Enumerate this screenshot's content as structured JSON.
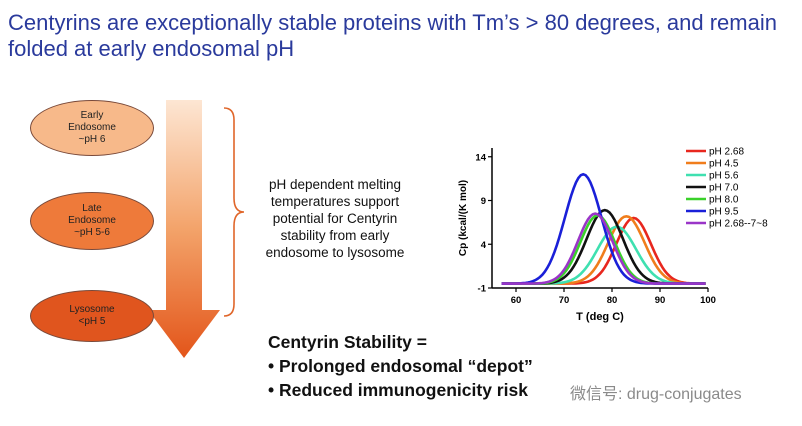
{
  "title": "Centyrins are exceptionally stable proteins with Tm’s > 80 degrees, and remain folded at early endosomal pH",
  "stages": [
    {
      "lines": [
        "Early",
        "Endosome",
        "~pH 6"
      ],
      "color": "#f7b98a"
    },
    {
      "lines": [
        "Late",
        "Endosome",
        "~pH 5-6"
      ],
      "color": "#ee7a3a"
    },
    {
      "lines": [
        "Lysosome",
        "<pH 5"
      ],
      "color": "#e0551e"
    }
  ],
  "description_lines": [
    "pH dependent melting",
    "temperatures support",
    "potential for Centyrin",
    "stability from early",
    "endosome to lysosome"
  ],
  "stability": {
    "heading": "Centyrin Stability =",
    "bullets": [
      "• Prolonged endosomal “depot”",
      "• Reduced immunogenicity risk"
    ]
  },
  "watermark": "微信号: drug-conjugates",
  "chart_data": {
    "type": "line",
    "xlabel": "T (deg C)",
    "ylabel": "Cp (kcal/(K mol)",
    "xlim": [
      55,
      100
    ],
    "ylim": [
      -1,
      15
    ],
    "xticks": [
      60,
      70,
      80,
      90,
      100
    ],
    "yticks": [
      -1,
      4,
      9,
      14
    ],
    "legend_position": "right",
    "series": [
      {
        "name": "pH 2.68",
        "color": "#e8271e",
        "peak_x": 84.5,
        "peak_y": 7.0,
        "width": 3.6
      },
      {
        "name": "pH 4.5",
        "color": "#f07d1c",
        "peak_x": 83.0,
        "peak_y": 7.2,
        "width": 3.8
      },
      {
        "name": "pH 5.6",
        "color": "#3fe0b0",
        "peak_x": 81.0,
        "peak_y": 6.0,
        "width": 4.0
      },
      {
        "name": "pH 7.0",
        "color": "#111111",
        "peak_x": 78.5,
        "peak_y": 7.9,
        "width": 3.8
      },
      {
        "name": "pH 8.0",
        "color": "#3ad12a",
        "peak_x": 77.0,
        "peak_y": 7.3,
        "width": 3.6
      },
      {
        "name": "pH 9.5",
        "color": "#1a20d8",
        "peak_x": 74.0,
        "peak_y": 12.0,
        "width": 3.8
      },
      {
        "name": "pH 2.68--7~8",
        "color": "#9a35c8",
        "peak_x": 76.5,
        "peak_y": 7.5,
        "width": 3.6
      }
    ]
  }
}
